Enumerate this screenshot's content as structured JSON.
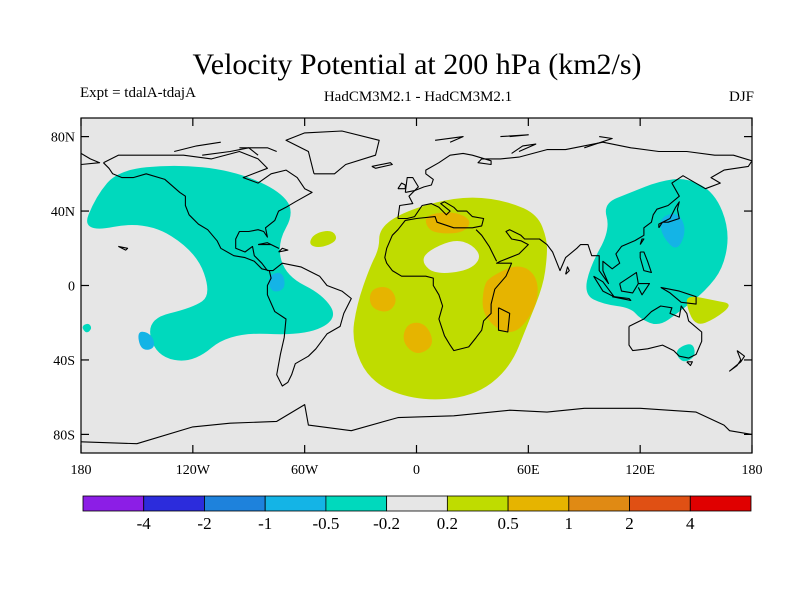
{
  "chart_data": {
    "type": "contour_map",
    "title": "Velocity Potential at 200 hPa (km2/s)",
    "subtitle_left": "Expt = tdalA-tdajA",
    "subtitle_center": "HadCM3M2.1 - HadCM3M2.1",
    "subtitle_right": "DJF",
    "xlim": [
      -180,
      180
    ],
    "ylim": [
      -90,
      90
    ],
    "lat_ticks": [
      {
        "value": 80,
        "label": "80N"
      },
      {
        "value": 40,
        "label": "40N"
      },
      {
        "value": 0,
        "label": "0"
      },
      {
        "value": -40,
        "label": "40S"
      },
      {
        "value": -80,
        "label": "80S"
      }
    ],
    "lon_ticks": [
      {
        "value": -180,
        "label": "180"
      },
      {
        "value": -120,
        "label": "120W"
      },
      {
        "value": -60,
        "label": "60W"
      },
      {
        "value": 0,
        "label": "0"
      },
      {
        "value": 60,
        "label": "60E"
      },
      {
        "value": 120,
        "label": "120E"
      },
      {
        "value": 180,
        "label": "180"
      }
    ],
    "colorbar": {
      "labels": [
        "-4",
        "-2",
        "-1",
        "-0.5",
        "-0.2",
        "0.2",
        "0.5",
        "1",
        "2",
        "4"
      ],
      "colors": [
        "#8c1ee6",
        "#2c2cdc",
        "#1e82dc",
        "#14b4e6",
        "#00d9bd",
        "#e6e6e6",
        "#bfdc00",
        "#e6b400",
        "#e08a14",
        "#e05014",
        "#e00000"
      ]
    },
    "background_color": "#e6e6e6",
    "regions": [
      {
        "level": "-0.2 to -0.5",
        "color": "#00d9bd",
        "polygons": [
          [
            [
              -160,
              62
            ],
            [
              -130,
              65
            ],
            [
              -100,
              62
            ],
            [
              -75,
              52
            ],
            [
              -65,
              40
            ],
            [
              -75,
              22
            ],
            [
              -70,
              5
            ],
            [
              -50,
              -5
            ],
            [
              -42,
              -18
            ],
            [
              -60,
              -27
            ],
            [
              -100,
              -25
            ],
            [
              -120,
              -42
            ],
            [
              -140,
              -38
            ],
            [
              -145,
              -18
            ],
            [
              -120,
              -12
            ],
            [
              -110,
              -5
            ],
            [
              -118,
              18
            ],
            [
              -145,
              35
            ],
            [
              -180,
              28
            ],
            [
              -172,
              48
            ]
          ],
          [
            [
              -180,
              -22
            ],
            [
              -176,
              -20
            ],
            [
              -174,
              -23
            ],
            [
              -177,
              -26
            ]
          ],
          [
            [
              100,
              44
            ],
            [
              115,
              50
            ],
            [
              130,
              56
            ],
            [
              145,
              58
            ],
            [
              160,
              50
            ],
            [
              168,
              30
            ],
            [
              165,
              10
            ],
            [
              155,
              -3
            ],
            [
              140,
              -15
            ],
            [
              130,
              -22
            ],
            [
              120,
              -18
            ],
            [
              115,
              -12
            ],
            [
              100,
              -10
            ],
            [
              90,
              -5
            ],
            [
              93,
              10
            ],
            [
              104,
              30
            ]
          ],
          [
            [
              138,
              -35
            ],
            [
              148,
              -30
            ],
            [
              150,
              -38
            ],
            [
              143,
              -42
            ]
          ]
        ]
      },
      {
        "level": "-0.5 to -1",
        "color": "#14b4e6",
        "polygons": [
          [
            [
              130,
              36
            ],
            [
              140,
              40
            ],
            [
              145,
              30
            ],
            [
              140,
              18
            ],
            [
              132,
              26
            ]
          ],
          [
            [
              -80,
              5
            ],
            [
              -72,
              8
            ],
            [
              -70,
              -2
            ],
            [
              -78,
              -4
            ]
          ],
          [
            [
              -150,
              -24
            ],
            [
              -142,
              -26
            ],
            [
              -140,
              -34
            ],
            [
              -148,
              -35
            ]
          ]
        ]
      },
      {
        "level": "0.2 to 0.5",
        "color": "#bfdc00",
        "polygons": [
          [
            [
              -20,
              30
            ],
            [
              -10,
              38
            ],
            [
              10,
              45
            ],
            [
              30,
              48
            ],
            [
              50,
              45
            ],
            [
              65,
              38
            ],
            [
              70,
              25
            ],
            [
              70,
              15
            ],
            [
              68,
              0
            ],
            [
              60,
              -20
            ],
            [
              50,
              -45
            ],
            [
              30,
              -60
            ],
            [
              0,
              -62
            ],
            [
              -25,
              -52
            ],
            [
              -35,
              -30
            ],
            [
              -32,
              -10
            ],
            [
              -25,
              10
            ],
            [
              -20,
              20
            ]
          ],
          [
            [
              -55,
              28
            ],
            [
              -45,
              30
            ],
            [
              -42,
              24
            ],
            [
              -52,
              20
            ],
            [
              -58,
              22
            ]
          ],
          [
            [
              145,
              -5
            ],
            [
              160,
              -8
            ],
            [
              170,
              -10
            ],
            [
              160,
              -18
            ],
            [
              150,
              -22
            ],
            [
              145,
              -12
            ]
          ]
        ]
      },
      {
        "level": "0.5 to 1",
        "color": "#e6b400",
        "polygons": [
          [
            [
              5,
              38
            ],
            [
              20,
              40
            ],
            [
              30,
              35
            ],
            [
              25,
              28
            ],
            [
              10,
              28
            ],
            [
              5,
              32
            ]
          ],
          [
            [
              40,
              5
            ],
            [
              55,
              12
            ],
            [
              65,
              5
            ],
            [
              65,
              -10
            ],
            [
              55,
              -25
            ],
            [
              45,
              -25
            ],
            [
              35,
              -15
            ],
            [
              36,
              0
            ]
          ],
          [
            [
              -25,
              -2
            ],
            [
              -15,
              0
            ],
            [
              -10,
              -8
            ],
            [
              -15,
              -15
            ],
            [
              -25,
              -12
            ]
          ],
          [
            [
              -5,
              -20
            ],
            [
              5,
              -20
            ],
            [
              10,
              -32
            ],
            [
              0,
              -38
            ],
            [
              -8,
              -30
            ]
          ]
        ]
      },
      {
        "level": "-0.2 to 0.2",
        "color": "#e6e6e6",
        "polygons": [
          [
            [
              5,
              18
            ],
            [
              20,
              25
            ],
            [
              30,
              22
            ],
            [
              35,
              15
            ],
            [
              28,
              8
            ],
            [
              10,
              6
            ],
            [
              3,
              12
            ]
          ]
        ]
      }
    ]
  }
}
